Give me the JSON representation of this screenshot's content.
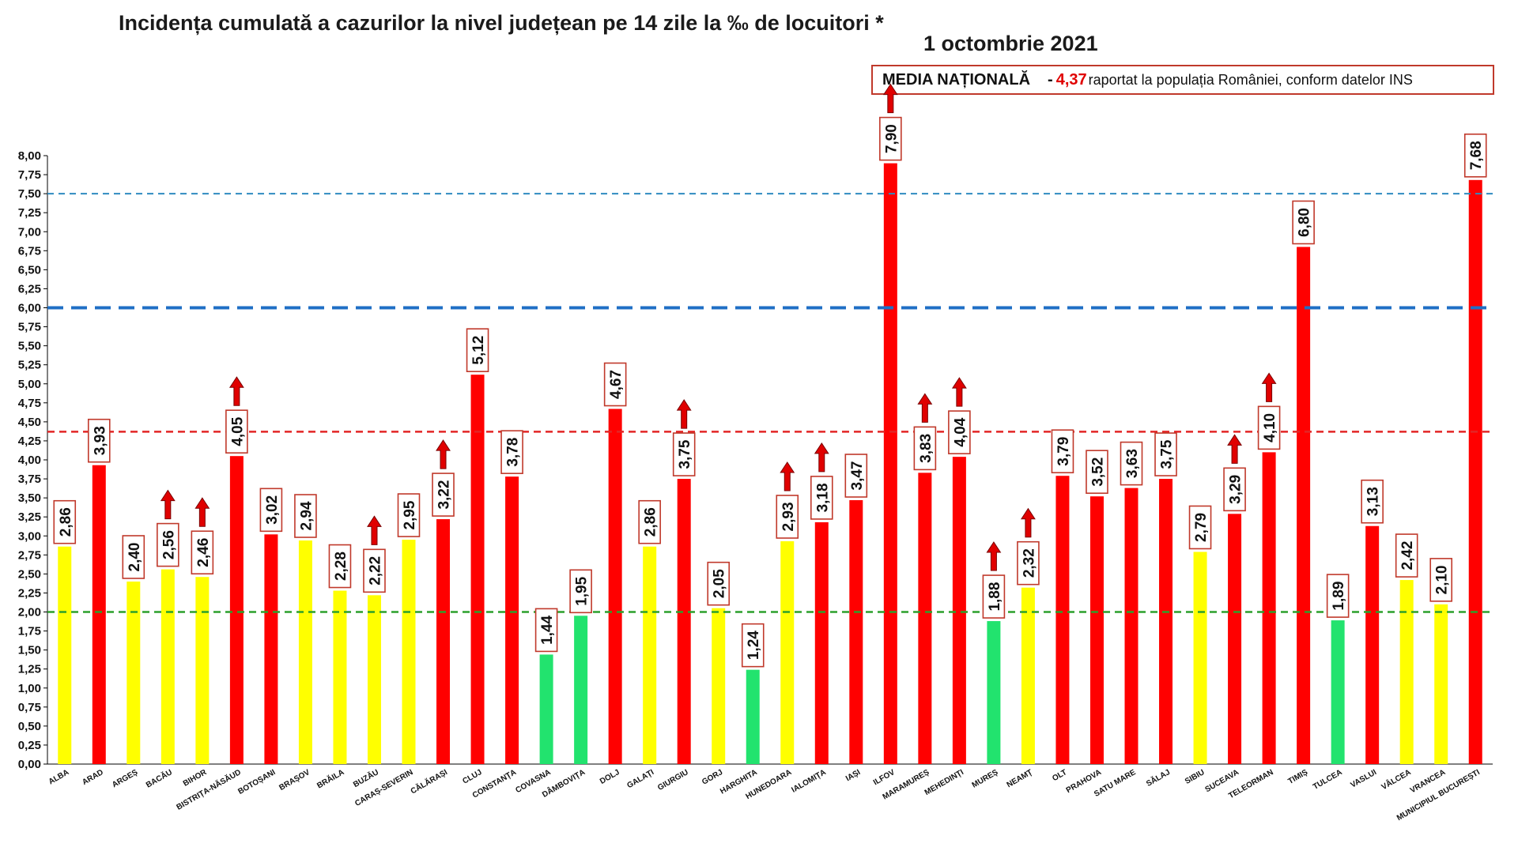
{
  "header": {
    "title": "Incidența cumulată a cazurilor la nivel județean pe 14 zile la ‰ de locuitori *",
    "date": "1 octombrie 2021"
  },
  "national_average": {
    "label": "MEDIA NAȚIONALĂ",
    "separator": "-",
    "value": "4,37",
    "text": "raportat la populația României, conform datelor INS"
  },
  "colors": {
    "red": "#ff0000",
    "yellow": "#ffff00",
    "green": "#22e36e",
    "label_border": "#c0392b",
    "arrow_fill": "#e00000",
    "line_7_5": "#2e8bc0",
    "line_6": "#1f6fc5",
    "line_national": "#e32626",
    "line_2": "#2ca02c"
  },
  "chart_data": {
    "type": "bar",
    "title": "Incidența cumulată a cazurilor la nivel județean pe 14 zile la ‰ de locuitori *",
    "subtitle": "1 octombrie 2021",
    "xlabel": "",
    "ylabel": "",
    "ylim": [
      0,
      8
    ],
    "y_ticks": [
      "0,00",
      "0,25",
      "0,50",
      "0,75",
      "1,00",
      "1,25",
      "1,50",
      "1,75",
      "2,00",
      "2,25",
      "2,50",
      "2,75",
      "3,00",
      "3,25",
      "3,50",
      "3,75",
      "4,00",
      "4,25",
      "4,50",
      "4,75",
      "5,00",
      "5,25",
      "5,50",
      "5,75",
      "6,00",
      "6,25",
      "6,50",
      "6,75",
      "7,00",
      "7,25",
      "7,50",
      "7,75",
      "8,00"
    ],
    "grid": false,
    "legend": "none",
    "categories": [
      "ALBA",
      "ARAD",
      "ARGEȘ",
      "BACĂU",
      "BIHOR",
      "BISTRIȚA-NĂSĂUD",
      "BOTOȘANI",
      "BRAȘOV",
      "BRĂILA",
      "BUZĂU",
      "CARAȘ-SEVERIN",
      "CĂLĂRAȘI",
      "CLUJ",
      "CONSTANȚA",
      "COVASNA",
      "DÂMBOVIȚA",
      "DOLJ",
      "GALAȚI",
      "GIURGIU",
      "GORJ",
      "HARGHITA",
      "HUNEDOARA",
      "IALOMIȚA",
      "IAȘI",
      "ILFOV",
      "MARAMUREȘ",
      "MEHEDINȚI",
      "MUREȘ",
      "NEAMȚ",
      "OLT",
      "PRAHOVA",
      "SATU MARE",
      "SĂLAJ",
      "SIBIU",
      "SUCEAVA",
      "TELEORMAN",
      "TIMIȘ",
      "TULCEA",
      "VASLUI",
      "VÂLCEA",
      "VRANCEA",
      "MUNICIPIUL BUCUREȘTI"
    ],
    "values": [
      2.86,
      3.93,
      2.4,
      2.56,
      2.46,
      4.05,
      3.02,
      2.94,
      2.28,
      2.22,
      2.95,
      3.22,
      5.12,
      3.78,
      1.44,
      1.95,
      4.67,
      2.86,
      3.75,
      2.05,
      1.24,
      2.93,
      3.18,
      3.47,
      7.9,
      3.83,
      4.04,
      1.88,
      2.32,
      3.79,
      3.52,
      3.63,
      3.75,
      2.79,
      3.29,
      4.1,
      6.8,
      1.89,
      3.13,
      2.42,
      2.1,
      7.68
    ],
    "value_labels": [
      "2,86",
      "3,93",
      "2,40",
      "2,56",
      "2,46",
      "4,05",
      "3,02",
      "2,94",
      "2,28",
      "2,22",
      "2,95",
      "3,22",
      "5,12",
      "3,78",
      "1,44",
      "1,95",
      "4,67",
      "2,86",
      "3,75",
      "2,05",
      "1,24",
      "2,93",
      "3,18",
      "3,47",
      "7,90",
      "3,83",
      "4,04",
      "1,88",
      "2,32",
      "3,79",
      "3,52",
      "3,63",
      "3,75",
      "2,79",
      "3,29",
      "4,10",
      "6,80",
      "1,89",
      "3,13",
      "2,42",
      "2,10",
      "7,68"
    ],
    "bar_colors": [
      "yellow",
      "red",
      "yellow",
      "yellow",
      "yellow",
      "red",
      "red",
      "yellow",
      "yellow",
      "yellow",
      "yellow",
      "red",
      "red",
      "red",
      "green",
      "green",
      "red",
      "yellow",
      "red",
      "yellow",
      "green",
      "yellow",
      "red",
      "red",
      "red",
      "red",
      "red",
      "green",
      "yellow",
      "red",
      "red",
      "red",
      "red",
      "yellow",
      "red",
      "red",
      "red",
      "green",
      "red",
      "yellow",
      "yellow",
      "red"
    ],
    "up_arrows": [
      "BACĂU",
      "BIHOR",
      "BISTRIȚA-NĂSĂUD",
      "BUZĂU",
      "CĂLĂRAȘI",
      "GIURGIU",
      "HUNEDOARA",
      "IALOMIȚA",
      "ILFOV",
      "MARAMUREȘ",
      "MEHEDINȚI",
      "MUREȘ",
      "NEAMȚ",
      "SUCEAVA",
      "TELEORMAN"
    ],
    "reference_lines": [
      {
        "value": 7.5,
        "color_key": "line_7_5",
        "style": "dashed-thin"
      },
      {
        "value": 6.0,
        "color_key": "line_6",
        "style": "dashed-thick"
      },
      {
        "value": 4.37,
        "color_key": "line_national",
        "style": "dashed"
      },
      {
        "value": 2.0,
        "color_key": "line_2",
        "style": "dashed"
      }
    ]
  }
}
